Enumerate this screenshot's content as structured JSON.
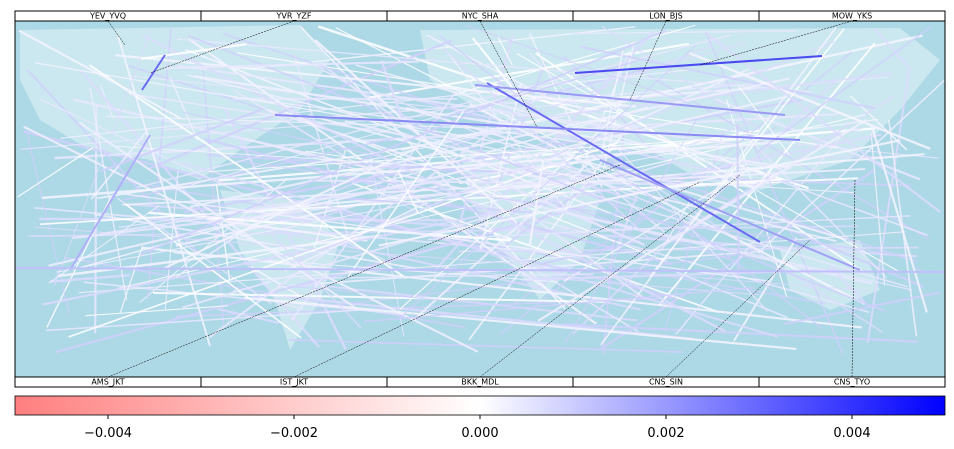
{
  "top_labels": [
    "YEV_YVQ",
    "YVR_YZF",
    "NYC_SHA",
    "LON_BJS",
    "MOW_YKS"
  ],
  "bottom_labels": [
    "AMS_JKT",
    "IST_JKT",
    "BKK_MDL",
    "CNS_SIN",
    "CNS_TYO"
  ],
  "colorbar": {
    "lim": [
      -0.005,
      0.005
    ],
    "colors": [
      "#ff7f7f",
      "#ffffff",
      "#0000ff"
    ],
    "ticks": [
      {
        "value": -0.004,
        "label": "−0.004"
      },
      {
        "value": -0.002,
        "label": "−0.002"
      },
      {
        "value": 0,
        "label": "0.000"
      },
      {
        "value": 0.002,
        "label": "0.002"
      },
      {
        "value": 0.004,
        "label": "0.004"
      }
    ]
  }
}
